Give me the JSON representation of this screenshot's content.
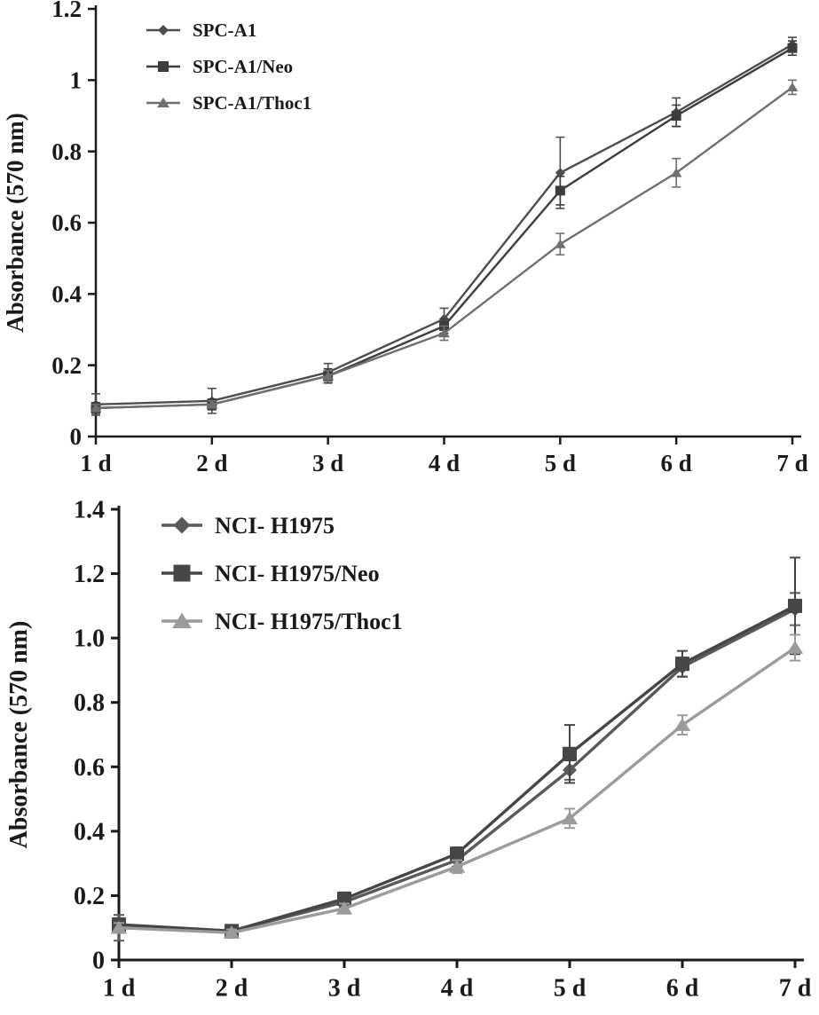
{
  "figure": {
    "background": "#ffffff",
    "axis_color": "#1a1a1a"
  },
  "chart_data": [
    {
      "type": "line",
      "title": "",
      "xlabel": "",
      "ylabel": "Absorbance (570 nm)",
      "x_categories": [
        "1 d",
        "2 d",
        "3 d",
        "4 d",
        "5 d",
        "6 d",
        "7 d"
      ],
      "ylim": [
        0,
        1.2
      ],
      "yticks": [
        0,
        0.2,
        0.4,
        0.6,
        0.8,
        1,
        1.2
      ],
      "ytick_labels": [
        "0",
        "0.2",
        "0.4",
        "0.6",
        "0.8",
        "1",
        "1.2"
      ],
      "grid": false,
      "legend_position": "top-left-inside",
      "series": [
        {
          "name": "SPC-A1",
          "marker": "diamond",
          "color": "#4d4d4d",
          "values": [
            0.09,
            0.1,
            0.18,
            0.33,
            0.74,
            0.91,
            1.1
          ],
          "errors": [
            0.03,
            0.035,
            0.025,
            0.03,
            0.1,
            0.04,
            0.02
          ]
        },
        {
          "name": "SPC-A1/Neo",
          "marker": "square",
          "color": "#3d3d3d",
          "values": [
            0.08,
            0.09,
            0.17,
            0.31,
            0.69,
            0.9,
            1.09
          ],
          "errors": [
            0.015,
            0.015,
            0.02,
            0.02,
            0.04,
            0.03,
            0.02
          ]
        },
        {
          "name": "SPC-A1/Thoc1",
          "marker": "triangle",
          "color": "#6f6f6f",
          "values": [
            0.08,
            0.09,
            0.17,
            0.29,
            0.54,
            0.74,
            0.98
          ],
          "errors": [
            0.01,
            0.01,
            0.015,
            0.02,
            0.03,
            0.04,
            0.02
          ]
        }
      ]
    },
    {
      "type": "line",
      "title": "",
      "xlabel": "",
      "ylabel": "Absorbance (570 nm)",
      "x_categories": [
        "1 d",
        "2 d",
        "3 d",
        "4 d",
        "5 d",
        "6 d",
        "7 d"
      ],
      "ylim": [
        0,
        1.4
      ],
      "yticks": [
        0,
        0.2,
        0.4,
        0.6,
        0.8,
        1.0,
        1.2,
        1.4
      ],
      "ytick_labels": [
        "0",
        "0.2",
        "0.4",
        "0.6",
        "0.8",
        "1.0",
        "1.2",
        "1.4"
      ],
      "grid": false,
      "legend_position": "top-left-inside",
      "series": [
        {
          "name": "NCI- H1975",
          "marker": "diamond",
          "color": "#595959",
          "values": [
            0.1,
            0.09,
            0.18,
            0.31,
            0.59,
            0.91,
            1.09
          ],
          "errors": [
            0.04,
            0.01,
            0.015,
            0.02,
            0.03,
            0.03,
            0.05
          ]
        },
        {
          "name": "NCI- H1975/Neo",
          "marker": "square",
          "color": "#464646",
          "values": [
            0.11,
            0.09,
            0.19,
            0.33,
            0.64,
            0.92,
            1.1
          ],
          "errors": [
            0.02,
            0.01,
            0.02,
            0.02,
            0.09,
            0.04,
            0.15
          ]
        },
        {
          "name": "NCI- H1975/Thoc1",
          "marker": "triangle",
          "color": "#9b9b9b",
          "values": [
            0.1,
            0.085,
            0.16,
            0.29,
            0.44,
            0.73,
            0.97
          ],
          "errors": [
            0.015,
            0.01,
            0.015,
            0.02,
            0.03,
            0.03,
            0.04
          ]
        }
      ]
    }
  ]
}
